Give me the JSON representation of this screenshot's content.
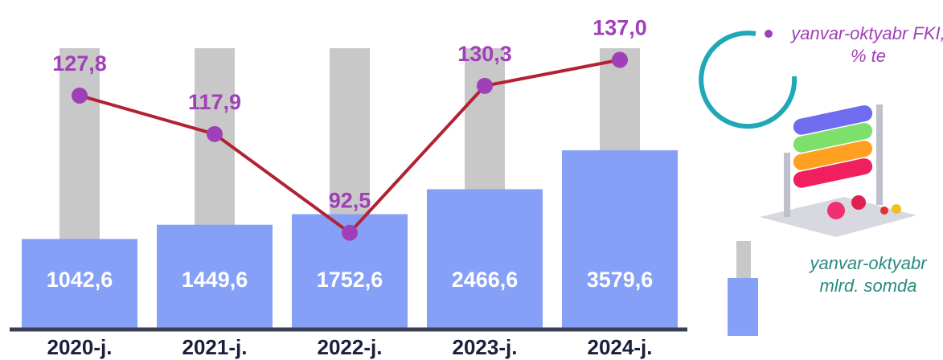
{
  "chart_data": {
    "type": "bar_line",
    "categories": [
      "2020-j.",
      "2021-j.",
      "2022-j.",
      "2023-j.",
      "2024-j."
    ],
    "ylim": [
      -1500,
      6500
    ],
    "y2lim": [
      68,
      140
    ],
    "series": [
      {
        "name": "yanvar-oktyabr mlrd. somda",
        "type": "bar",
        "color": "#86a0f8",
        "values": [
          1042.6,
          1449.6,
          1752.6,
          2466.6,
          3579.6
        ],
        "value_labels": [
          "1042,6",
          "1449,6",
          "1752,6",
          "2466,6",
          "3579,6"
        ]
      },
      {
        "name": "yanvar-oktyabr FKI, % te",
        "type": "line",
        "axis": "y2",
        "color": "#b22234",
        "marker_color": "#a040b8",
        "values": [
          127.8,
          117.9,
          92.5,
          130.3,
          137.0
        ],
        "value_labels": [
          "127,8",
          "117,9",
          "92,5",
          "130,3",
          "137,0"
        ]
      }
    ]
  }
}
